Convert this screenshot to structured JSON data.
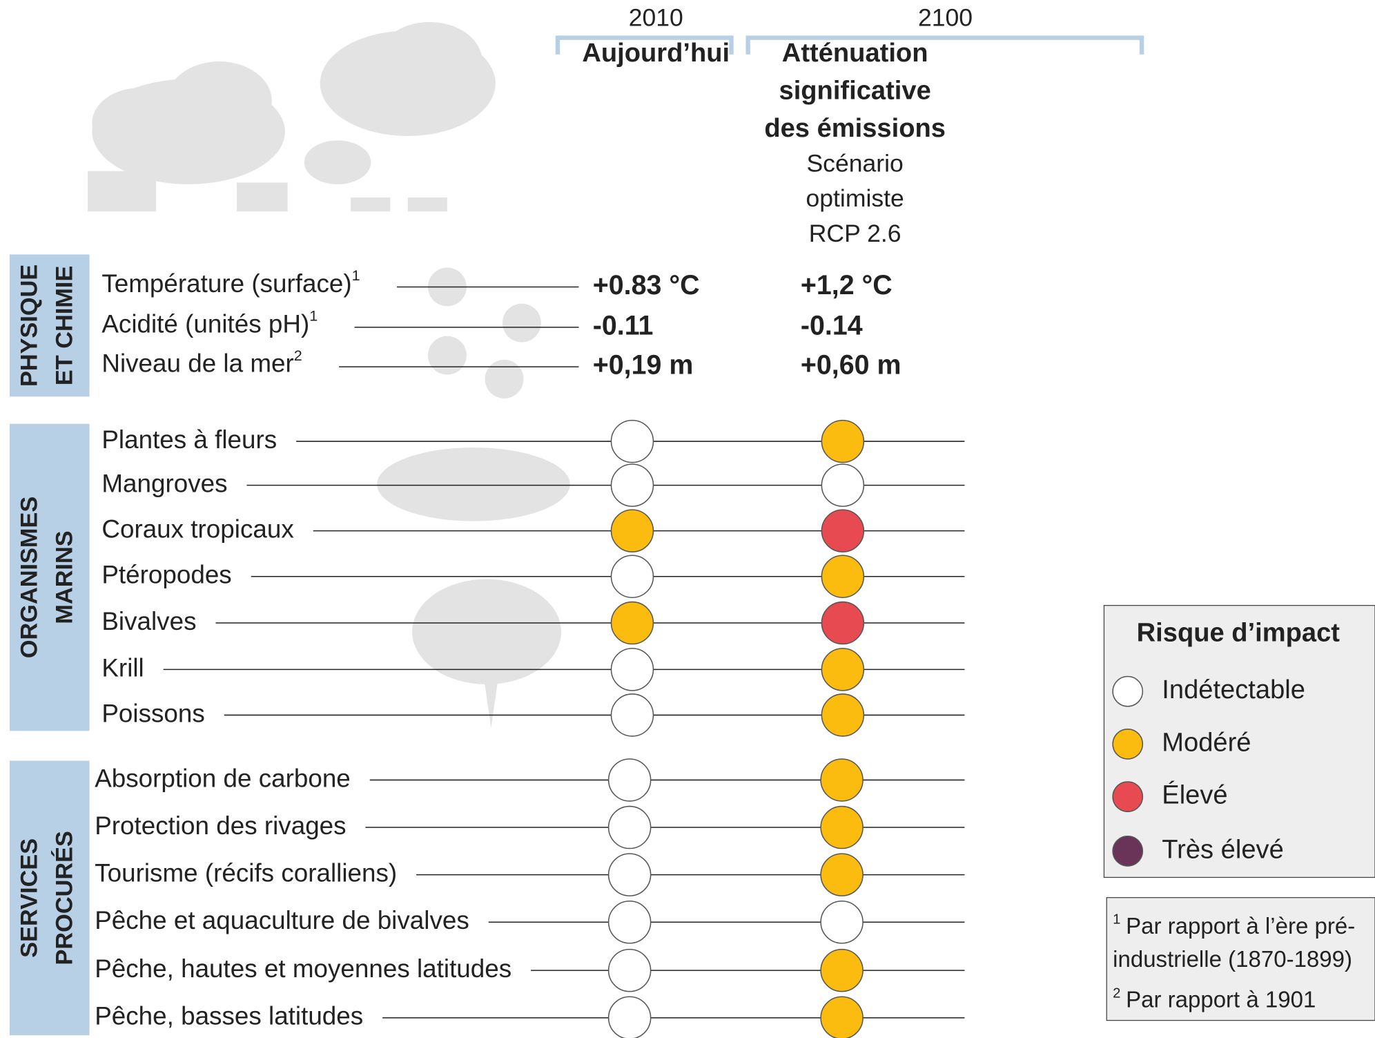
{
  "columns": [
    {
      "year": "2010",
      "title": [
        "Aujourd’hui"
      ],
      "subtitle": []
    },
    {
      "year": "2100",
      "title": [
        "Atténuation",
        "significative",
        "des émissions"
      ],
      "subtitle": [
        "Scénario",
        "optimiste",
        "RCP 2.6"
      ]
    }
  ],
  "sections": [
    {
      "label": [
        "PHYSIQUE",
        "ET CHIMIE"
      ],
      "rows": [
        {
          "label": "Température (surface)",
          "note": "1",
          "values": [
            "+0.83 °C",
            "+1,2 °C"
          ]
        },
        {
          "label": "Acidité (unités pH)",
          "note": "1",
          "values": [
            "-0.11",
            "-0.14"
          ]
        },
        {
          "label": "Niveau de la mer",
          "note": "2",
          "values": [
            "+0,19 m",
            "+0,60 m"
          ]
        }
      ]
    },
    {
      "label": [
        "ORGANISMES",
        "MARINS"
      ],
      "rows": [
        {
          "label": "Plantes à fleurs",
          "risks": [
            0,
            1
          ]
        },
        {
          "label": "Mangroves",
          "risks": [
            0,
            0
          ]
        },
        {
          "label": "Coraux tropicaux",
          "risks": [
            1,
            2
          ]
        },
        {
          "label": "Ptéropodes",
          "risks": [
            0,
            1
          ]
        },
        {
          "label": "Bivalves",
          "risks": [
            1,
            2
          ]
        },
        {
          "label": "Krill",
          "risks": [
            0,
            1
          ]
        },
        {
          "label": "Poissons",
          "risks": [
            0,
            1
          ]
        }
      ]
    },
    {
      "label": [
        "SERVICES",
        "PROCURÉS"
      ],
      "rows": [
        {
          "label": "Absorption de carbone",
          "risks": [
            0,
            1
          ]
        },
        {
          "label": "Protection des rivages",
          "risks": [
            0,
            1
          ]
        },
        {
          "label": "Tourisme (récifs coralliens)",
          "risks": [
            0,
            1
          ]
        },
        {
          "label": "Pêche et aquaculture de bivalves",
          "risks": [
            0,
            0
          ]
        },
        {
          "label": "Pêche, hautes et moyennes latitudes",
          "risks": [
            0,
            1
          ]
        },
        {
          "label": "Pêche, basses latitudes",
          "risks": [
            0,
            1
          ]
        }
      ]
    }
  ],
  "legend": {
    "title": "Risque d’impact",
    "levels": [
      {
        "label": "Indétectable",
        "color": "#ffffff"
      },
      {
        "label": "Modéré",
        "color": "#fbbc0f"
      },
      {
        "label": "Élevé",
        "color": "#e84a52"
      },
      {
        "label": "Très élevé",
        "color": "#6a3459"
      }
    ]
  },
  "footnotes": [
    {
      "mark": "1",
      "lines": [
        "Par rapport à l’ère pré-",
        "industrielle (1870-1899)"
      ]
    },
    {
      "mark": "2",
      "lines": [
        "Par rapport à 1901"
      ]
    }
  ]
}
